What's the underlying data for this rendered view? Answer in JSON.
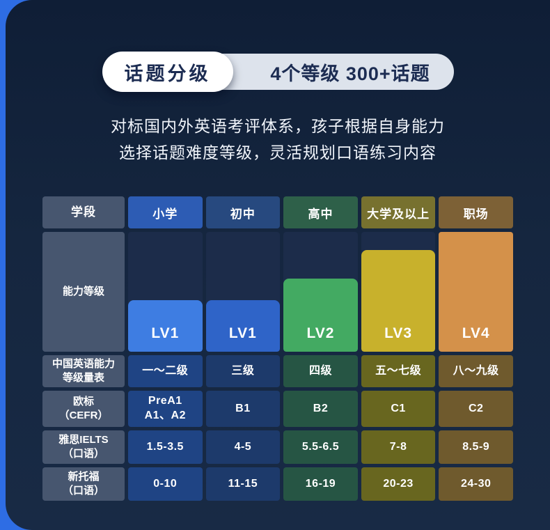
{
  "badge": {
    "left": "话题分级",
    "right": "4个等级 300+话题"
  },
  "description": {
    "line1": "对标国内外英语考评体系，孩子根据自身能力",
    "line2": "选择话题难度等级，灵活规划口语练习内容"
  },
  "table": {
    "header": [
      "学段",
      "小学",
      "初中",
      "高中",
      "大学及以上",
      "职场"
    ],
    "level_label": "能力等级",
    "levels": [
      {
        "column": "小学",
        "label": "LV1"
      },
      {
        "column": "初中",
        "label": "LV1"
      },
      {
        "column": "高中",
        "label": "LV2"
      },
      {
        "column": "大学及以上",
        "label": "LV3"
      },
      {
        "column": "职场",
        "label": "LV4"
      }
    ],
    "rows": [
      {
        "label": "中国英语能力\n等级量表",
        "values": [
          "一～二级",
          "三级",
          "四级",
          "五～七级",
          "八～九级"
        ]
      },
      {
        "label": "欧标\n（CEFR）",
        "values": [
          "PreA1\nA1、A2",
          "B1",
          "B2",
          "C1",
          "C2"
        ]
      },
      {
        "label": "雅思IELTS\n（口语）",
        "values": [
          "1.5-3.5",
          "4-5",
          "5.5-6.5",
          "7-8",
          "8.5-9"
        ]
      },
      {
        "label": "新托福\n（口语）",
        "values": [
          "0-10",
          "11-15",
          "16-19",
          "20-23",
          "24-30"
        ]
      }
    ]
  },
  "colors": {
    "page_bg": "#2e6de4",
    "card_bg": "#15263f",
    "label_cell": "#47566f",
    "level_backdrop": "#1c2c4a",
    "badge_left_bg": "#ffffff",
    "badge_right_bg": "#dde3ec",
    "badge_text": "#1c2c52",
    "headers": [
      "#2d5cb4",
      "#27497f",
      "#2e6049",
      "#77712f",
      "#7d6136"
    ],
    "values": [
      "#1f4484",
      "#1d3a6b",
      "#265544",
      "#68661f",
      "#6f5a2d"
    ],
    "bars": [
      "#3e7de2",
      "#2f64c8",
      "#43aa62",
      "#c8b12c",
      "#d4914a"
    ]
  }
}
